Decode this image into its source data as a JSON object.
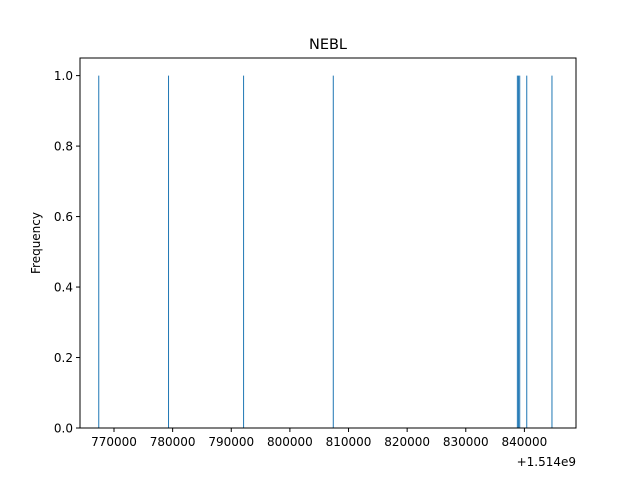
{
  "chart_data": {
    "type": "bar",
    "title": "NEBL",
    "xlabel": "",
    "ylabel": "Frequency",
    "x_offset_label": "+1.514e9",
    "x_offset": 1514000000,
    "xlim": [
      764200,
      848800
    ],
    "ylim": [
      0,
      1.05
    ],
    "bin_width": 170,
    "xticks": [
      770000,
      780000,
      790000,
      800000,
      810000,
      820000,
      830000,
      840000
    ],
    "xtick_labels": [
      "770000",
      "780000",
      "790000",
      "800000",
      "810000",
      "820000",
      "830000",
      "840000"
    ],
    "yticks": [
      0.0,
      0.2,
      0.4,
      0.6,
      0.8,
      1.0
    ],
    "ytick_labels": [
      "0.0",
      "0.2",
      "0.4",
      "0.6",
      "0.8",
      "1.0"
    ],
    "x": [
      767400,
      779300,
      792100,
      807400,
      838800,
      839000,
      839200,
      840400,
      844700
    ],
    "values": [
      1,
      1,
      1,
      1,
      1,
      1,
      1,
      1,
      1
    ],
    "bar_color": "#1f77b4",
    "grid": false,
    "legend": "none"
  }
}
